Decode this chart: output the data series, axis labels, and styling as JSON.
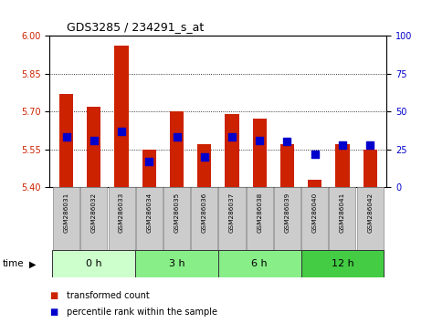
{
  "title": "GDS3285 / 234291_s_at",
  "samples": [
    "GSM286031",
    "GSM286032",
    "GSM286033",
    "GSM286034",
    "GSM286035",
    "GSM286036",
    "GSM286037",
    "GSM286038",
    "GSM286039",
    "GSM286040",
    "GSM286041",
    "GSM286042"
  ],
  "transformed_count": [
    5.77,
    5.72,
    5.96,
    5.55,
    5.7,
    5.57,
    5.69,
    5.67,
    5.57,
    5.43,
    5.57,
    5.55
  ],
  "percentile_rank": [
    33,
    31,
    37,
    17,
    33,
    20,
    33,
    31,
    30,
    22,
    28,
    28
  ],
  "groups": [
    {
      "label": "0 h",
      "start": 0,
      "end": 3,
      "color": "#ccffcc"
    },
    {
      "label": "3 h",
      "start": 3,
      "end": 6,
      "color": "#88ee88"
    },
    {
      "label": "6 h",
      "start": 6,
      "end": 9,
      "color": "#88ee88"
    },
    {
      "label": "12 h",
      "start": 9,
      "end": 12,
      "color": "#44cc44"
    }
  ],
  "ylim_left": [
    5.4,
    6.0
  ],
  "ylim_right": [
    0,
    100
  ],
  "yticks_left": [
    5.4,
    5.55,
    5.7,
    5.85,
    6.0
  ],
  "yticks_right": [
    0,
    25,
    50,
    75,
    100
  ],
  "bar_color": "#cc2200",
  "dot_color": "#0000cc",
  "bar_width": 0.5,
  "dot_size": 30,
  "left_tick_color": "#cc2200",
  "right_tick_color": "#0000cc",
  "legend_bar": "transformed count",
  "legend_dot": "percentile rank within the sample",
  "bg_color": "#ffffff",
  "grid_color": "#000000",
  "sample_bg": "#cccccc"
}
